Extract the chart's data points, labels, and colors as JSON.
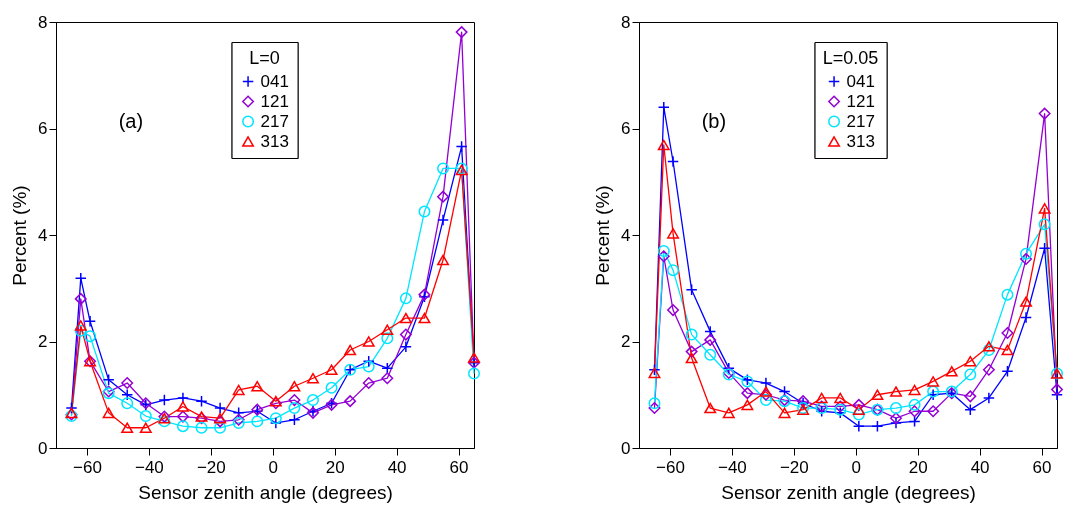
{
  "chart_data": [
    {
      "type": "line",
      "annotations": [
        "(a)"
      ],
      "xlabel": "Sensor zenith angle (degrees)",
      "ylabel": "Percent (%)",
      "legend_title": "L=0",
      "legend": "top",
      "xlim": [
        -70,
        65
      ],
      "ylim": [
        0,
        8
      ],
      "xticks": [
        -60,
        -40,
        -20,
        0,
        20,
        40,
        60
      ],
      "yticks": [
        0,
        2,
        4,
        6,
        8
      ],
      "grid": false,
      "line_style": "solid",
      "x": [
        -65,
        -62,
        -59,
        -53,
        -47,
        -41,
        -35,
        -29,
        -23,
        -17,
        -11,
        -5,
        1,
        7,
        13,
        19,
        25,
        31,
        37,
        43,
        49,
        55,
        61,
        65
      ],
      "series": [
        {
          "name": "041",
          "color": "#0000ff",
          "marker": "cross",
          "values": [
            0.75,
            3.19,
            2.38,
            1.28,
            1.0,
            0.81,
            0.9,
            0.94,
            0.88,
            0.75,
            0.66,
            0.69,
            0.47,
            0.53,
            0.69,
            0.84,
            1.47,
            1.63,
            1.5,
            1.9,
            2.84,
            4.28,
            5.66,
            1.6
          ]
        },
        {
          "name": "121",
          "color": "#9400d3",
          "marker": "diamond",
          "values": [
            0.63,
            2.8,
            1.63,
            1.06,
            1.22,
            0.84,
            0.59,
            0.59,
            0.56,
            0.5,
            0.53,
            0.72,
            0.84,
            0.9,
            0.66,
            0.81,
            0.88,
            1.22,
            1.31,
            2.13,
            2.88,
            4.72,
            7.81,
            1.6
          ]
        },
        {
          "name": "217",
          "color": "#00e5ff",
          "marker": "circle",
          "values": [
            0.6,
            2.2,
            2.1,
            1.03,
            0.84,
            0.6,
            0.5,
            0.41,
            0.38,
            0.38,
            0.47,
            0.5,
            0.56,
            0.75,
            0.9,
            1.13,
            1.47,
            1.53,
            2.06,
            2.81,
            4.44,
            5.25,
            5.25,
            1.4
          ]
        },
        {
          "name": "313",
          "color": "#ff0000",
          "marker": "triangle",
          "values": [
            0.66,
            2.3,
            1.63,
            0.66,
            0.38,
            0.38,
            0.56,
            0.78,
            0.59,
            0.56,
            1.09,
            1.16,
            0.88,
            1.16,
            1.31,
            1.47,
            1.84,
            2.0,
            2.22,
            2.44,
            2.44,
            3.53,
            5.22,
            1.7
          ]
        }
      ]
    },
    {
      "type": "line",
      "annotations": [
        "(b)"
      ],
      "xlabel": "Sensor zenith angle (degrees)",
      "ylabel": "Percent (%)",
      "legend_title": "L=0.05",
      "legend": "top",
      "xlim": [
        -70,
        65
      ],
      "ylim": [
        0,
        8
      ],
      "xticks": [
        -60,
        -40,
        -20,
        0,
        20,
        40,
        60
      ],
      "yticks": [
        0,
        2,
        4,
        6,
        8
      ],
      "grid": false,
      "line_style": "solid",
      "x": [
        -65,
        -62,
        -59,
        -53,
        -47,
        -41,
        -35,
        -29,
        -23,
        -17,
        -11,
        -5,
        1,
        7,
        13,
        19,
        25,
        31,
        37,
        43,
        49,
        55,
        61,
        65
      ],
      "series": [
        {
          "name": "041",
          "color": "#0000ff",
          "marker": "cross",
          "values": [
            1.47,
            6.4,
            5.38,
            2.97,
            2.19,
            1.5,
            1.28,
            1.22,
            1.06,
            0.84,
            0.69,
            0.66,
            0.41,
            0.41,
            0.47,
            0.5,
            1.0,
            1.03,
            0.72,
            0.94,
            1.44,
            2.45,
            3.75,
            1.0
          ]
        },
        {
          "name": "121",
          "color": "#9400d3",
          "marker": "diamond",
          "values": [
            0.75,
            3.6,
            2.59,
            1.81,
            2.03,
            1.41,
            1.03,
            1.0,
            0.9,
            0.88,
            0.78,
            0.78,
            0.81,
            0.72,
            0.56,
            0.69,
            0.69,
            1.03,
            0.97,
            1.47,
            2.16,
            3.55,
            6.28,
            1.1
          ]
        },
        {
          "name": "217",
          "color": "#00e5ff",
          "marker": "circle",
          "values": [
            0.84,
            3.7,
            3.34,
            2.13,
            1.75,
            1.38,
            1.25,
            0.9,
            0.88,
            0.75,
            0.75,
            0.72,
            0.63,
            0.72,
            0.75,
            0.81,
            1.06,
            1.06,
            1.38,
            1.84,
            2.88,
            3.65,
            4.2,
            1.4
          ]
        },
        {
          "name": "313",
          "color": "#ff0000",
          "marker": "triangle",
          "values": [
            1.41,
            5.69,
            4.03,
            1.69,
            0.75,
            0.66,
            0.81,
            1.06,
            0.66,
            0.72,
            0.94,
            0.94,
            0.72,
            1.0,
            1.06,
            1.09,
            1.25,
            1.44,
            1.63,
            1.91,
            1.84,
            2.75,
            4.5,
            1.4
          ]
        }
      ]
    }
  ]
}
